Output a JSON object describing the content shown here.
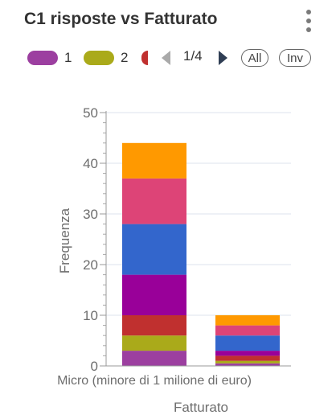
{
  "header": {
    "title": "C1 risposte vs Fatturato",
    "menu_icon": "more-vert-icon"
  },
  "legend": {
    "items": [
      {
        "label": "1",
        "color": "#9c3fa0"
      },
      {
        "label": "2",
        "color": "#aaaa1a"
      },
      {
        "label": "",
        "color": "#c0302f"
      }
    ],
    "page_indicator": "1/4",
    "prev_icon": "triangle-left-icon",
    "next_icon": "triangle-right-icon",
    "all_label": "All",
    "inv_label": "Inv",
    "prev_color": "#aaaaaa",
    "next_color": "#2f3e54"
  },
  "chart_data": {
    "type": "bar",
    "stacked": true,
    "categories": [
      "Micro (minore di 1 milione di euro)",
      ""
    ],
    "series": [
      {
        "name": "1",
        "color": "#9c3fa0",
        "values": [
          3,
          0.5
        ]
      },
      {
        "name": "2",
        "color": "#aaaa1a",
        "values": [
          3,
          0.5
        ]
      },
      {
        "name": "",
        "color": "#c0302f",
        "values": [
          4,
          1
        ]
      },
      {
        "color": "#990099",
        "values": [
          8,
          1
        ]
      },
      {
        "color": "#3366cc",
        "values": [
          10,
          3
        ]
      },
      {
        "color": "#dd4477",
        "values": [
          9,
          2
        ]
      },
      {
        "color": "#ff9900",
        "values": [
          7,
          2
        ]
      }
    ],
    "xlabel": "Fatturato",
    "ylabel": "Frequenza",
    "ylim": [
      0,
      50
    ],
    "yticks": [
      0,
      10,
      20,
      30,
      40,
      50
    ],
    "grid": true,
    "legend_position": "top"
  }
}
